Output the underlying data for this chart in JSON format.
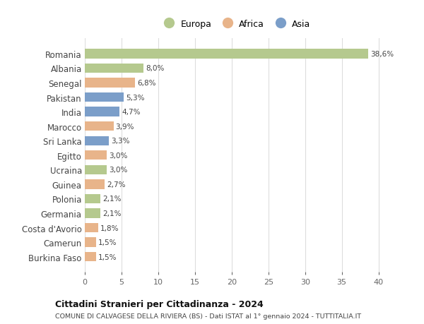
{
  "countries": [
    "Romania",
    "Albania",
    "Senegal",
    "Pakistan",
    "India",
    "Marocco",
    "Sri Lanka",
    "Egitto",
    "Ucraina",
    "Guinea",
    "Polonia",
    "Germania",
    "Costa d'Avorio",
    "Camerun",
    "Burkina Faso"
  ],
  "values": [
    38.6,
    8.0,
    6.8,
    5.3,
    4.7,
    3.9,
    3.3,
    3.0,
    3.0,
    2.7,
    2.1,
    2.1,
    1.8,
    1.5,
    1.5
  ],
  "labels": [
    "38,6%",
    "8,0%",
    "6,8%",
    "5,3%",
    "4,7%",
    "3,9%",
    "3,3%",
    "3,0%",
    "3,0%",
    "2,7%",
    "2,1%",
    "2,1%",
    "1,8%",
    "1,5%",
    "1,5%"
  ],
  "continents": [
    "Europa",
    "Europa",
    "Africa",
    "Asia",
    "Asia",
    "Africa",
    "Asia",
    "Africa",
    "Europa",
    "Africa",
    "Europa",
    "Europa",
    "Africa",
    "Africa",
    "Africa"
  ],
  "continent_colors": {
    "Europa": "#b5c98e",
    "Africa": "#e8b48a",
    "Asia": "#7b9ec9"
  },
  "legend_order": [
    "Europa",
    "Africa",
    "Asia"
  ],
  "title": "Cittadini Stranieri per Cittadinanza - 2024",
  "subtitle": "COMUNE DI CALVAGESE DELLA RIVIERA (BS) - Dati ISTAT al 1° gennaio 2024 - TUTTITALIA.IT",
  "xlim": [
    0,
    41
  ],
  "xticks": [
    0,
    5,
    10,
    15,
    20,
    25,
    30,
    35,
    40
  ],
  "bg_color": "#ffffff",
  "grid_color": "#dddddd",
  "bar_height": 0.65
}
